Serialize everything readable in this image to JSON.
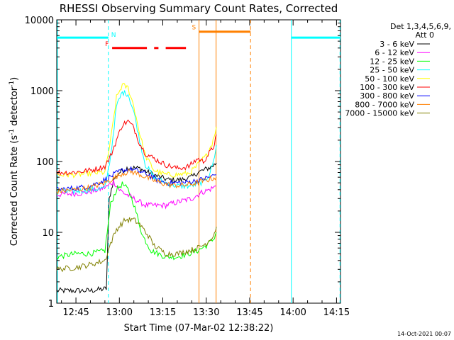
{
  "chart_data": {
    "type": "line",
    "title": "RHESSI Observing Summary Count Rates, Corrected",
    "xlabel": "Start Time (07-Mar-02 12:38:22)",
    "ylabel_main": "Corrected Count Rate (s",
    "ylabel_sup1": "-1",
    "ylabel_mid": " detector",
    "ylabel_sup2": "-1",
    "ylabel_end": ")",
    "x_unit": "minutes since 12:00 UT",
    "xlim": [
      38.37,
      136.37
    ],
    "ylim": [
      1,
      10000
    ],
    "yscale": "log",
    "x_ticks": [
      {
        "v": 45,
        "label": "12:45"
      },
      {
        "v": 60,
        "label": "13:00"
      },
      {
        "v": 75,
        "label": "13:15"
      },
      {
        "v": 90,
        "label": "13:30"
      },
      {
        "v": 105,
        "label": "13:45"
      },
      {
        "v": 120,
        "label": "14:00"
      },
      {
        "v": 135,
        "label": "14:15"
      }
    ],
    "y_ticks": [
      {
        "v": 1,
        "label": "1"
      },
      {
        "v": 10,
        "label": "10"
      },
      {
        "v": 100,
        "label": "100"
      },
      {
        "v": 1000,
        "label": "1000"
      },
      {
        "v": 10000,
        "label": "10000"
      }
    ],
    "legend_header": [
      "Det 1,3,4,5,6,9,",
      "Att 0"
    ],
    "series": [
      {
        "name": "3 - 6 keV",
        "color": "#000000",
        "points": [
          [
            38.4,
            1.5
          ],
          [
            50,
            1.5
          ],
          [
            55.5,
            1.6
          ],
          [
            56.5,
            30
          ],
          [
            58,
            55
          ],
          [
            60,
            70
          ],
          [
            63,
            82
          ],
          [
            67,
            80
          ],
          [
            70,
            70
          ],
          [
            73,
            62
          ],
          [
            77,
            55
          ],
          [
            81,
            55
          ],
          [
            85,
            60
          ],
          [
            87,
            70
          ],
          [
            89,
            75
          ],
          [
            92,
            85
          ],
          [
            93.5,
            95
          ]
        ]
      },
      {
        "name": "6 - 12 keV",
        "color": "#ff00ff",
        "points": [
          [
            38.4,
            34
          ],
          [
            43,
            35
          ],
          [
            48,
            36
          ],
          [
            53,
            40
          ],
          [
            56,
            45
          ],
          [
            58,
            52
          ],
          [
            60,
            40
          ],
          [
            62,
            35
          ],
          [
            65,
            30
          ],
          [
            69,
            24
          ],
          [
            72,
            24
          ],
          [
            76,
            24
          ],
          [
            79,
            26
          ],
          [
            82,
            28
          ],
          [
            85,
            30
          ],
          [
            88,
            36
          ],
          [
            91,
            40
          ],
          [
            93.5,
            45
          ]
        ]
      },
      {
        "name": "12 - 25 keV",
        "color": "#00ff00",
        "points": [
          [
            38.4,
            4.5
          ],
          [
            45,
            5
          ],
          [
            50,
            5
          ],
          [
            55,
            5.5
          ],
          [
            57,
            25
          ],
          [
            59,
            40
          ],
          [
            61,
            48
          ],
          [
            63,
            40
          ],
          [
            65,
            25
          ],
          [
            68,
            9
          ],
          [
            71,
            5.5
          ],
          [
            76,
            4.5
          ],
          [
            80,
            4.5
          ],
          [
            84,
            5
          ],
          [
            87,
            5.5
          ],
          [
            90,
            6.5
          ],
          [
            92.5,
            8
          ],
          [
            93.5,
            10
          ]
        ]
      },
      {
        "name": "25 - 50 keV",
        "color": "#00ffff",
        "points": [
          [
            38.4,
            37
          ],
          [
            45,
            38
          ],
          [
            50,
            40
          ],
          [
            55,
            42
          ],
          [
            57,
            120
          ],
          [
            59,
            600
          ],
          [
            61,
            950
          ],
          [
            63,
            900
          ],
          [
            65,
            500
          ],
          [
            67,
            200
          ],
          [
            69,
            90
          ],
          [
            72,
            60
          ],
          [
            76,
            50
          ],
          [
            80,
            45
          ],
          [
            84,
            45
          ],
          [
            87,
            48
          ],
          [
            89,
            52
          ],
          [
            91,
            65
          ],
          [
            92.5,
            100
          ],
          [
            93.5,
            170
          ]
        ]
      },
      {
        "name": "50 - 100 keV",
        "color": "#ffff00",
        "points": [
          [
            38.4,
            65
          ],
          [
            45,
            65
          ],
          [
            50,
            68
          ],
          [
            55,
            70
          ],
          [
            57,
            200
          ],
          [
            59,
            800
          ],
          [
            61,
            1200
          ],
          [
            63,
            1100
          ],
          [
            65,
            600
          ],
          [
            67,
            250
          ],
          [
            69,
            120
          ],
          [
            72,
            75
          ],
          [
            76,
            65
          ],
          [
            80,
            65
          ],
          [
            84,
            68
          ],
          [
            86,
            80
          ],
          [
            88,
            100
          ],
          [
            90,
            120
          ],
          [
            92,
            180
          ],
          [
            93.5,
            310
          ]
        ]
      },
      {
        "name": "100 - 300 keV",
        "color": "#ff0000",
        "points": [
          [
            38.4,
            70
          ],
          [
            44,
            70
          ],
          [
            50,
            75
          ],
          [
            55,
            85
          ],
          [
            57,
            120
          ],
          [
            59,
            200
          ],
          [
            61,
            330
          ],
          [
            63,
            370
          ],
          [
            65,
            300
          ],
          [
            67,
            180
          ],
          [
            69,
            130
          ],
          [
            72,
            110
          ],
          [
            76,
            90
          ],
          [
            80,
            80
          ],
          [
            84,
            85
          ],
          [
            87,
            110
          ],
          [
            89,
            100
          ],
          [
            91,
            130
          ],
          [
            92.5,
            160
          ],
          [
            93.5,
            240
          ]
        ]
      },
      {
        "name": "300 - 800 keV",
        "color": "#0000ff",
        "points": [
          [
            38.4,
            40
          ],
          [
            45,
            42
          ],
          [
            50,
            45
          ],
          [
            55,
            55
          ],
          [
            58,
            65
          ],
          [
            61,
            75
          ],
          [
            64,
            78
          ],
          [
            67,
            72
          ],
          [
            70,
            65
          ],
          [
            73,
            55
          ],
          [
            76,
            50
          ],
          [
            79,
            50
          ],
          [
            82,
            50
          ],
          [
            85,
            52
          ],
          [
            88,
            55
          ],
          [
            91,
            60
          ],
          [
            93.5,
            65
          ]
        ]
      },
      {
        "name": "800 - 7000 keV",
        "color": "#ff8000",
        "points": [
          [
            38.4,
            38
          ],
          [
            45,
            40
          ],
          [
            50,
            43
          ],
          [
            55,
            50
          ],
          [
            58,
            58
          ],
          [
            61,
            68
          ],
          [
            64,
            72
          ],
          [
            67,
            66
          ],
          [
            70,
            58
          ],
          [
            73,
            52
          ],
          [
            76,
            48
          ],
          [
            79,
            46
          ],
          [
            82,
            46
          ],
          [
            85,
            48
          ],
          [
            88,
            52
          ],
          [
            91,
            56
          ],
          [
            93.5,
            60
          ]
        ]
      },
      {
        "name": "7000 - 15000 keV",
        "color": "#808000",
        "points": [
          [
            38.4,
            3
          ],
          [
            45,
            3.2
          ],
          [
            50,
            3.5
          ],
          [
            55,
            4
          ],
          [
            57,
            7
          ],
          [
            59,
            11
          ],
          [
            62,
            15
          ],
          [
            65,
            15
          ],
          [
            67,
            13
          ],
          [
            70,
            9
          ],
          [
            72,
            6.5
          ],
          [
            76,
            5
          ],
          [
            80,
            5
          ],
          [
            84,
            5.5
          ],
          [
            87,
            6
          ],
          [
            90,
            7
          ],
          [
            92.5,
            9
          ],
          [
            93.5,
            12
          ]
        ]
      }
    ],
    "flag_bars": [
      {
        "label": "N",
        "color": "#00ffff",
        "y": 5600,
        "ranges": [
          [
            38.4,
            56.2
          ],
          [
            119.4,
            136.4
          ]
        ]
      },
      {
        "label": "F",
        "color": "#ff0000",
        "y": 4000,
        "ranges": [
          [
            57.5,
            69.5
          ],
          [
            72,
            73.5
          ],
          [
            76,
            83
          ]
        ]
      },
      {
        "label": "S",
        "color": "#ff8000",
        "y": 6800,
        "ranges": [
          [
            87.5,
            105.3
          ]
        ]
      }
    ],
    "vlines": [
      {
        "x": 38.6,
        "color": "#00ffff",
        "dash": false
      },
      {
        "x": 56.2,
        "color": "#00ffff",
        "dash": true
      },
      {
        "x": 87.5,
        "color": "#ff8000",
        "dash": false
      },
      {
        "x": 93.4,
        "color": "#ff8000",
        "dash": false
      },
      {
        "x": 105.3,
        "color": "#ff8000",
        "dash": true
      },
      {
        "x": 119.4,
        "color": "#00ffff",
        "dash": false
      },
      {
        "x": 136.2,
        "color": "#00ffff",
        "dash": true
      }
    ]
  },
  "footer_timestamp": "14-Oct-2021 00:07"
}
